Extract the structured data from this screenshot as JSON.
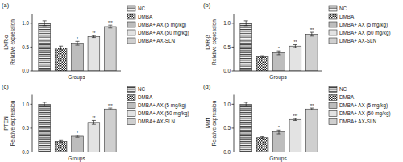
{
  "chart_data": [
    {
      "type": "bar",
      "title": "(a)",
      "ylabel": [
        "LXR-α",
        "Relative expression"
      ],
      "xlabel": "Groups",
      "categories": [
        null
      ],
      "ylim": [
        0,
        1.2
      ],
      "yticks": [
        {
          "value": 0,
          "label": "0.0"
        },
        0.5,
        {
          "value": 1,
          "label": "1.0"
        }
      ],
      "legend": "right",
      "series": [
        {
          "name": "NC",
          "color": "#ffffff",
          "values": [
            1.0
          ],
          "errors": [
            0.05
          ]
        },
        {
          "name": "DMBA",
          "color": "#ffffff",
          "values": [
            0.48
          ],
          "errors": [
            0.04
          ]
        },
        {
          "name": "DMBA+ AX (5 mg/kg)",
          "color": "#bdbdbd",
          "values": [
            0.58
          ],
          "errors": [
            0.04
          ],
          "stars": "*"
        },
        {
          "name": "DMBA+ AX (50 mg/kg)",
          "color": "#e3e3e3",
          "values": [
            0.72
          ],
          "errors": [
            0.02
          ],
          "stars": "**"
        },
        {
          "name": "DMBA+ AX-SLN",
          "color": "#cfcfcf",
          "values": [
            0.93
          ],
          "errors": [
            0.03
          ],
          "stars": "***"
        }
      ]
    },
    {
      "type": "bar",
      "title": "(b)",
      "ylabel": [
        "LXR-β",
        "Relative expression"
      ],
      "xlabel": "Groups",
      "categories": [
        null
      ],
      "ylim": [
        0,
        1.2
      ],
      "yticks": [
        {
          "value": 0,
          "label": "0.0"
        },
        0.5,
        {
          "value": 1,
          "label": "1.0"
        }
      ],
      "legend": "right",
      "series": [
        {
          "name": "NC",
          "color": "#ffffff",
          "values": [
            1.0
          ],
          "errors": [
            0.05
          ]
        },
        {
          "name": "DMBA",
          "color": "#ffffff",
          "values": [
            0.3
          ],
          "errors": [
            0.02
          ]
        },
        {
          "name": "DMBA+ AX (5 mg/kg)",
          "color": "#bdbdbd",
          "values": [
            0.38
          ],
          "errors": [
            0.04
          ],
          "stars": "*"
        },
        {
          "name": "DMBA+ AX (50 mg/kg)",
          "color": "#e3e3e3",
          "values": [
            0.52
          ],
          "errors": [
            0.03
          ],
          "stars": "**"
        },
        {
          "name": "DMBA+ AX-SLN",
          "color": "#cfcfcf",
          "values": [
            0.77
          ],
          "errors": [
            0.04
          ],
          "stars": "***"
        }
      ]
    },
    {
      "type": "bar",
      "title": "(c)",
      "ylabel": [
        "PTEN",
        "Relative expression"
      ],
      "xlabel": "Groups",
      "categories": [
        null
      ],
      "ylim": [
        0,
        1.2
      ],
      "yticks": [
        {
          "value": 0,
          "label": "0.0"
        },
        0.5,
        {
          "value": 1,
          "label": "1.0"
        }
      ],
      "legend": "right",
      "series": [
        {
          "name": "NC",
          "color": "#ffffff",
          "values": [
            1.0
          ],
          "errors": [
            0.04
          ]
        },
        {
          "name": "DMBA",
          "color": "#ffffff",
          "values": [
            0.22
          ],
          "errors": [
            0.02
          ]
        },
        {
          "name": "DMBA+ AX (5 mg/kg)",
          "color": "#bdbdbd",
          "values": [
            0.33
          ],
          "errors": [
            0.02
          ],
          "stars": "*"
        },
        {
          "name": "DMBA+ AX (50 mg/kg)",
          "color": "#e3e3e3",
          "values": [
            0.62
          ],
          "errors": [
            0.04
          ],
          "stars": "**"
        },
        {
          "name": "DMBA+ AX-SLN",
          "color": "#cfcfcf",
          "values": [
            0.9
          ],
          "errors": [
            0.02
          ],
          "stars": "***"
        }
      ]
    },
    {
      "type": "bar",
      "title": "(d)",
      "ylabel": [
        "Maff",
        "Relative expression"
      ],
      "xlabel": "Groups",
      "categories": [
        null
      ],
      "ylim": [
        0,
        1.2
      ],
      "yticks": [
        {
          "value": 0,
          "label": "0.0"
        },
        0.5,
        {
          "value": 1,
          "label": "1.0"
        }
      ],
      "legend": "right",
      "series": [
        {
          "name": "NC",
          "color": "#ffffff",
          "values": [
            1.0
          ],
          "errors": [
            0.04
          ]
        },
        {
          "name": "DMBA",
          "color": "#ffffff",
          "values": [
            0.3
          ],
          "errors": [
            0.02
          ]
        },
        {
          "name": "DMBA+ AX (5 mg/kg)",
          "color": "#bdbdbd",
          "values": [
            0.42
          ],
          "errors": [
            0.04
          ],
          "stars": "*"
        },
        {
          "name": "DMBA+ AX (50 mg/kg)",
          "color": "#e3e3e3",
          "values": [
            0.68
          ],
          "errors": [
            0.02
          ],
          "stars": "***"
        },
        {
          "name": "DMBA+ AX-SLN",
          "color": "#cfcfcf",
          "values": [
            0.9
          ],
          "errors": [
            0.02
          ],
          "stars": "***"
        }
      ]
    }
  ]
}
